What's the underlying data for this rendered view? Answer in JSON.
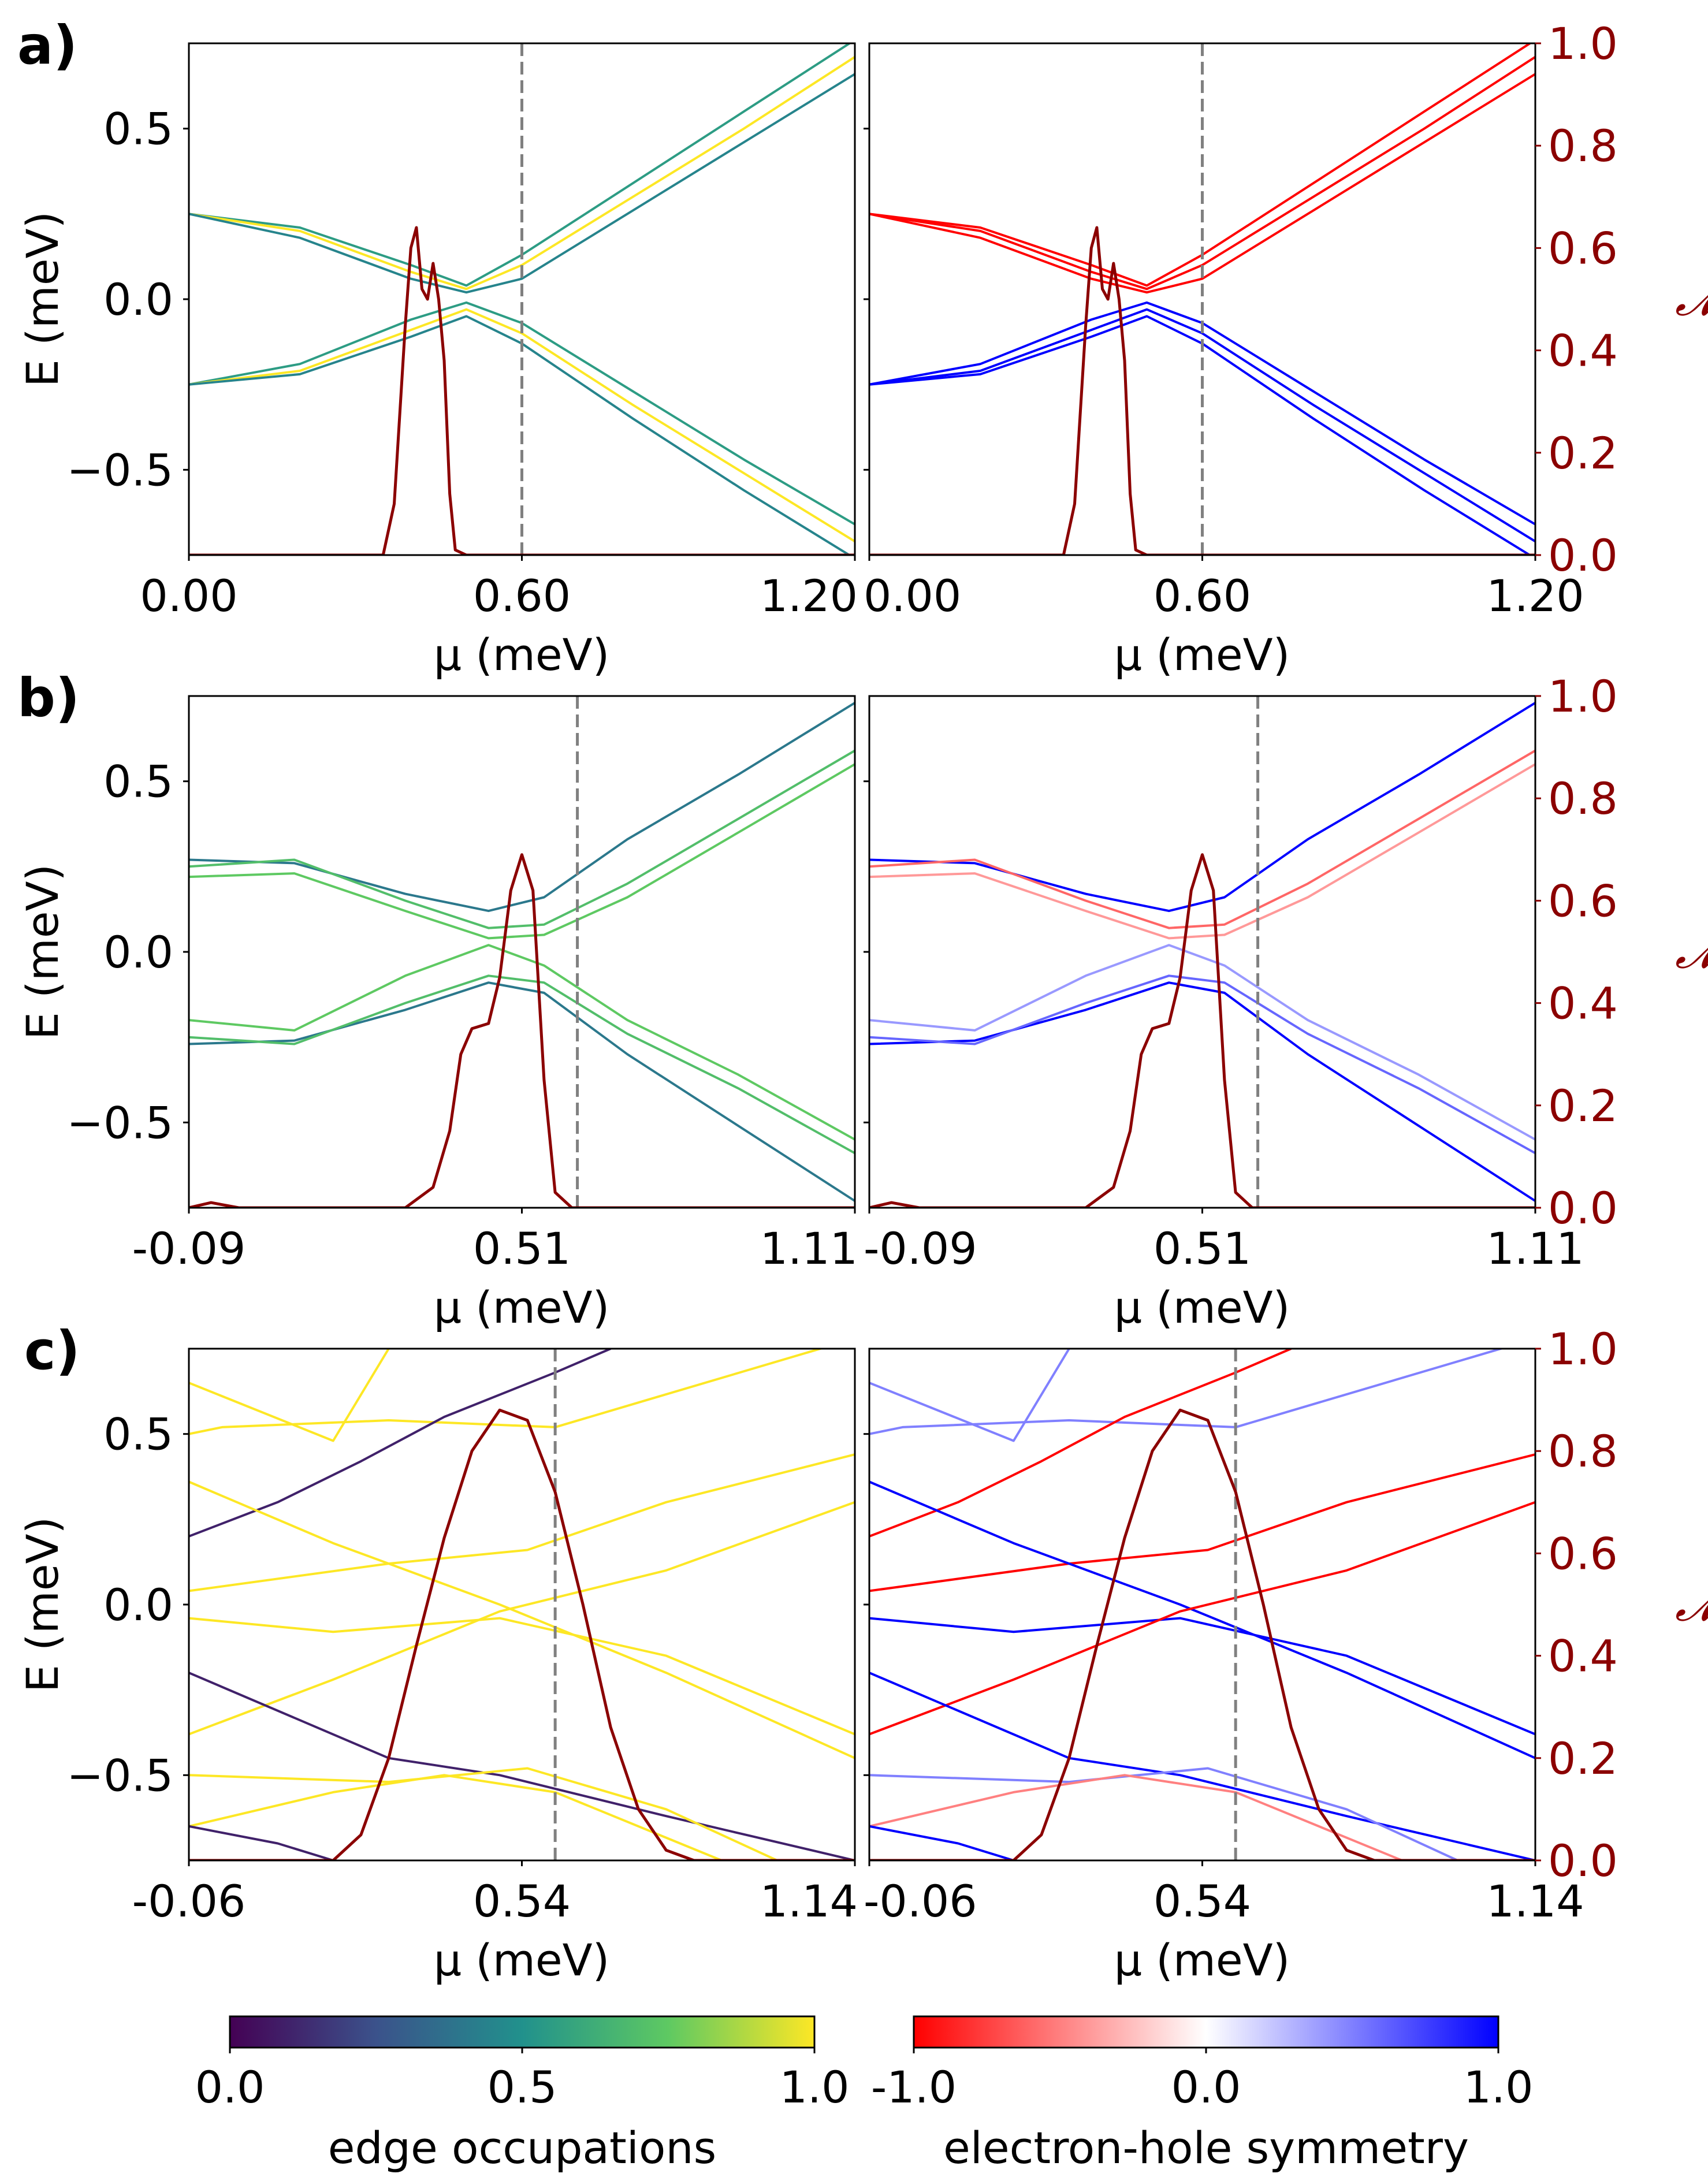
{
  "figure": {
    "colors": {
      "curve": "#8b0000",
      "vline": "#808080",
      "axis": "#000000",
      "right_axis": "#8b0000"
    },
    "colorbars": [
      {
        "label": "edge occupations",
        "ticks": [
          "0.0",
          "0.5",
          "1.0"
        ],
        "stops": [
          "#440154",
          "#3b528b",
          "#21918c",
          "#5ec962",
          "#fde725"
        ]
      },
      {
        "label": "electron-hole symmetry",
        "ticks": [
          "-1.0",
          "0.0",
          "1.0"
        ],
        "stops": [
          "#ff0000",
          "#ffffff",
          "#0000ff"
        ]
      }
    ]
  },
  "chart_data": [
    {
      "panel": "a)",
      "type": "line",
      "xlabel": "μ (meV)",
      "ylabel": "E (meV)",
      "y2label": "𝓜",
      "xlim": [
        0.0,
        1.2
      ],
      "xticks": [
        0.0,
        0.6,
        1.2
      ],
      "xticklabels": [
        "0.00",
        "0.60",
        "1.20"
      ],
      "ylim": [
        -0.75,
        0.75
      ],
      "yticks": [
        0.5,
        0.0,
        -0.5
      ],
      "yticklabels": [
        "0.5",
        "0.0",
        "−0.5"
      ],
      "y2lim": [
        0.0,
        1.0
      ],
      "y2ticks": [
        0.0,
        0.2,
        0.4,
        0.6,
        0.8,
        1.0
      ],
      "y2ticklabels": [
        "0.0",
        "0.2",
        "0.4",
        "0.6",
        "0.8",
        "1.0"
      ],
      "vline": 0.6,
      "bands": [
        {
          "mu": [
            0.0,
            0.2,
            0.4,
            0.5,
            0.6,
            0.8,
            1.0,
            1.2
          ],
          "e": [
            0.25,
            0.21,
            0.1,
            0.04,
            0.13,
            0.34,
            0.55,
            0.76
          ],
          "occ": 0.55,
          "eh": -1
        },
        {
          "mu": [
            0.0,
            0.2,
            0.4,
            0.5,
            0.6,
            0.8,
            1.0,
            1.2
          ],
          "e": [
            0.25,
            0.2,
            0.08,
            0.03,
            0.1,
            0.3,
            0.5,
            0.71
          ],
          "occ": 1.0,
          "eh": -1
        },
        {
          "mu": [
            0.0,
            0.2,
            0.4,
            0.5,
            0.6,
            0.8,
            1.0,
            1.2
          ],
          "e": [
            0.25,
            0.18,
            0.06,
            0.02,
            0.06,
            0.26,
            0.46,
            0.66
          ],
          "occ": 0.45,
          "eh": -1
        },
        {
          "mu": [
            0.0,
            0.2,
            0.4,
            0.5,
            0.6,
            0.8,
            1.0,
            1.2
          ],
          "e": [
            -0.25,
            -0.19,
            -0.06,
            -0.01,
            -0.07,
            -0.27,
            -0.47,
            -0.66
          ],
          "occ": 0.55,
          "eh": 1
        },
        {
          "mu": [
            0.0,
            0.2,
            0.4,
            0.5,
            0.6,
            0.8,
            1.0,
            1.2
          ],
          "e": [
            -0.25,
            -0.21,
            -0.09,
            -0.03,
            -0.1,
            -0.31,
            -0.51,
            -0.71
          ],
          "occ": 1.0,
          "eh": 1
        },
        {
          "mu": [
            0.0,
            0.2,
            0.4,
            0.5,
            0.6,
            0.8,
            1.0,
            1.2
          ],
          "e": [
            -0.25,
            -0.22,
            -0.11,
            -0.05,
            -0.13,
            -0.35,
            -0.56,
            -0.76
          ],
          "occ": 0.45,
          "eh": 1
        }
      ],
      "m_curve": {
        "mu": [
          0.0,
          0.35,
          0.37,
          0.39,
          0.4,
          0.41,
          0.42,
          0.43,
          0.44,
          0.45,
          0.46,
          0.47,
          0.48,
          0.5,
          0.55,
          1.2
        ],
        "m": [
          0.0,
          0.0,
          0.1,
          0.45,
          0.6,
          0.64,
          0.52,
          0.5,
          0.57,
          0.5,
          0.38,
          0.12,
          0.01,
          0.0,
          0.0,
          0.0
        ]
      }
    },
    {
      "panel": "b)",
      "type": "line",
      "xlabel": "μ (meV)",
      "ylabel": "E (meV)",
      "y2label": "𝓜",
      "xlim": [
        -0.09,
        1.11
      ],
      "xticks": [
        -0.09,
        0.51,
        1.11
      ],
      "xticklabels": [
        "-0.09",
        "0.51",
        "1.11"
      ],
      "ylim": [
        -0.75,
        0.75
      ],
      "yticks": [
        0.5,
        0.0,
        -0.5
      ],
      "yticklabels": [
        "0.5",
        "0.0",
        "−0.5"
      ],
      "y2lim": [
        0.0,
        1.0
      ],
      "y2ticks": [
        0.0,
        0.2,
        0.4,
        0.6,
        0.8,
        1.0
      ],
      "y2ticklabels": [
        "0.0",
        "0.2",
        "0.4",
        "0.6",
        "0.8",
        "1.0"
      ],
      "vline": 0.61,
      "bands": [
        {
          "mu": [
            -0.09,
            0.1,
            0.3,
            0.45,
            0.55,
            0.7,
            0.9,
            1.11
          ],
          "e": [
            0.27,
            0.26,
            0.17,
            0.12,
            0.16,
            0.33,
            0.52,
            0.73
          ],
          "occ": 0.4,
          "eh": 1
        },
        {
          "mu": [
            -0.09,
            0.1,
            0.3,
            0.45,
            0.55,
            0.7,
            0.9,
            1.11
          ],
          "e": [
            0.25,
            0.27,
            0.15,
            0.07,
            0.08,
            0.2,
            0.39,
            0.59
          ],
          "occ": 0.7,
          "eh": -0.6
        },
        {
          "mu": [
            -0.09,
            0.1,
            0.3,
            0.45,
            0.55,
            0.7,
            0.9,
            1.11
          ],
          "e": [
            0.22,
            0.23,
            0.12,
            0.04,
            0.05,
            0.16,
            0.35,
            0.55
          ],
          "occ": 0.75,
          "eh": -0.4
        },
        {
          "mu": [
            -0.09,
            0.1,
            0.3,
            0.45,
            0.55,
            0.7,
            0.9,
            1.11
          ],
          "e": [
            -0.27,
            -0.26,
            -0.17,
            -0.09,
            -0.12,
            -0.3,
            -0.51,
            -0.73
          ],
          "occ": 0.4,
          "eh": 1
        },
        {
          "mu": [
            -0.09,
            0.1,
            0.3,
            0.45,
            0.55,
            0.7,
            0.9,
            1.11
          ],
          "e": [
            -0.25,
            -0.27,
            -0.15,
            -0.07,
            -0.09,
            -0.24,
            -0.4,
            -0.59
          ],
          "occ": 0.7,
          "eh": 0.6
        },
        {
          "mu": [
            -0.09,
            0.1,
            0.3,
            0.45,
            0.55,
            0.7,
            0.9,
            1.11
          ],
          "e": [
            -0.2,
            -0.23,
            -0.07,
            0.02,
            -0.04,
            -0.2,
            -0.36,
            -0.55
          ],
          "occ": 0.75,
          "eh": 0.4
        }
      ],
      "m_curve": {
        "mu": [
          -0.09,
          -0.05,
          0.0,
          0.05,
          0.3,
          0.35,
          0.38,
          0.4,
          0.42,
          0.45,
          0.47,
          0.49,
          0.51,
          0.53,
          0.55,
          0.57,
          0.6,
          1.11
        ],
        "m": [
          0.0,
          0.01,
          0.0,
          0.0,
          0.0,
          0.04,
          0.15,
          0.3,
          0.35,
          0.36,
          0.45,
          0.62,
          0.69,
          0.62,
          0.25,
          0.03,
          0.0,
          0.0
        ]
      }
    },
    {
      "panel": "c)",
      "type": "line",
      "xlabel": "μ (meV)",
      "ylabel": "E (meV)",
      "y2label": "𝓜",
      "xlim": [
        -0.06,
        1.14
      ],
      "xticks": [
        -0.06,
        0.54,
        1.14
      ],
      "xticklabels": [
        "-0.06",
        "0.54",
        "1.14"
      ],
      "ylim": [
        -0.75,
        0.75
      ],
      "yticks": [
        0.5,
        0.0,
        -0.5
      ],
      "yticklabels": [
        "0.5",
        "0.0",
        "−0.5"
      ],
      "y2lim": [
        0.0,
        1.0
      ],
      "y2ticks": [
        0.0,
        0.2,
        0.4,
        0.6,
        0.8,
        1.0
      ],
      "y2ticklabels": [
        "0.0",
        "0.2",
        "0.4",
        "0.6",
        "0.8",
        "1.0"
      ],
      "vline": 0.6,
      "bands": [
        {
          "mu": [
            -0.06,
            0.2,
            0.3
          ],
          "e": [
            0.65,
            0.48,
            0.75
          ],
          "occ": 1.0,
          "eh": 0.5
        },
        {
          "mu": [
            -0.06,
            0.0,
            0.3,
            0.6,
            1.14
          ],
          "e": [
            0.5,
            0.52,
            0.54,
            0.52,
            0.78
          ],
          "occ": 1.0,
          "eh": 0.5
        },
        {
          "mu": [
            -0.06,
            0.1,
            0.25,
            0.4,
            0.6,
            0.7
          ],
          "e": [
            0.2,
            0.3,
            0.42,
            0.55,
            0.68,
            0.75
          ],
          "occ": 0.1,
          "eh": -1
        },
        {
          "mu": [
            -0.06,
            0.3,
            0.55,
            0.8,
            1.14
          ],
          "e": [
            0.04,
            0.12,
            0.16,
            0.3,
            0.44
          ],
          "occ": 1.0,
          "eh": -1
        },
        {
          "mu": [
            -0.06,
            0.2,
            0.5,
            0.8,
            1.14
          ],
          "e": [
            0.36,
            0.18,
            0.0,
            -0.2,
            -0.45
          ],
          "occ": 1.0,
          "eh": 1
        },
        {
          "mu": [
            -0.06,
            0.2,
            0.5,
            0.8,
            1.14
          ],
          "e": [
            -0.04,
            -0.08,
            -0.04,
            -0.15,
            -0.38
          ],
          "occ": 1.0,
          "eh": 1
        },
        {
          "mu": [
            -0.06,
            0.2,
            0.5,
            0.8,
            1.14
          ],
          "e": [
            -0.38,
            -0.22,
            -0.02,
            0.1,
            0.3
          ],
          "occ": 1.0,
          "eh": -1
        },
        {
          "mu": [
            -0.06,
            0.3,
            0.5,
            0.8,
            1.14
          ],
          "e": [
            -0.2,
            -0.45,
            -0.5,
            -0.62,
            -0.75
          ],
          "occ": 0.1,
          "eh": 1
        },
        {
          "mu": [
            -0.06,
            0.3,
            0.55,
            0.8,
            1.0
          ],
          "e": [
            -0.5,
            -0.52,
            -0.48,
            -0.6,
            -0.75
          ],
          "occ": 1.0,
          "eh": 0.5
        },
        {
          "mu": [
            -0.06,
            0.2,
            0.4,
            0.6,
            0.9
          ],
          "e": [
            -0.65,
            -0.55,
            -0.5,
            -0.55,
            -0.75
          ],
          "occ": 1.0,
          "eh": -0.5
        },
        {
          "mu": [
            -0.06,
            0.1,
            0.2
          ],
          "e": [
            -0.65,
            -0.7,
            -0.75
          ],
          "occ": 0.1,
          "eh": 1
        }
      ],
      "m_curve": {
        "mu": [
          -0.06,
          0.2,
          0.25,
          0.3,
          0.35,
          0.4,
          0.45,
          0.5,
          0.55,
          0.6,
          0.65,
          0.7,
          0.75,
          0.8,
          0.85,
          1.14
        ],
        "m": [
          0.0,
          0.0,
          0.05,
          0.2,
          0.42,
          0.63,
          0.8,
          0.88,
          0.86,
          0.72,
          0.5,
          0.26,
          0.1,
          0.02,
          0.0,
          0.0
        ]
      }
    }
  ]
}
